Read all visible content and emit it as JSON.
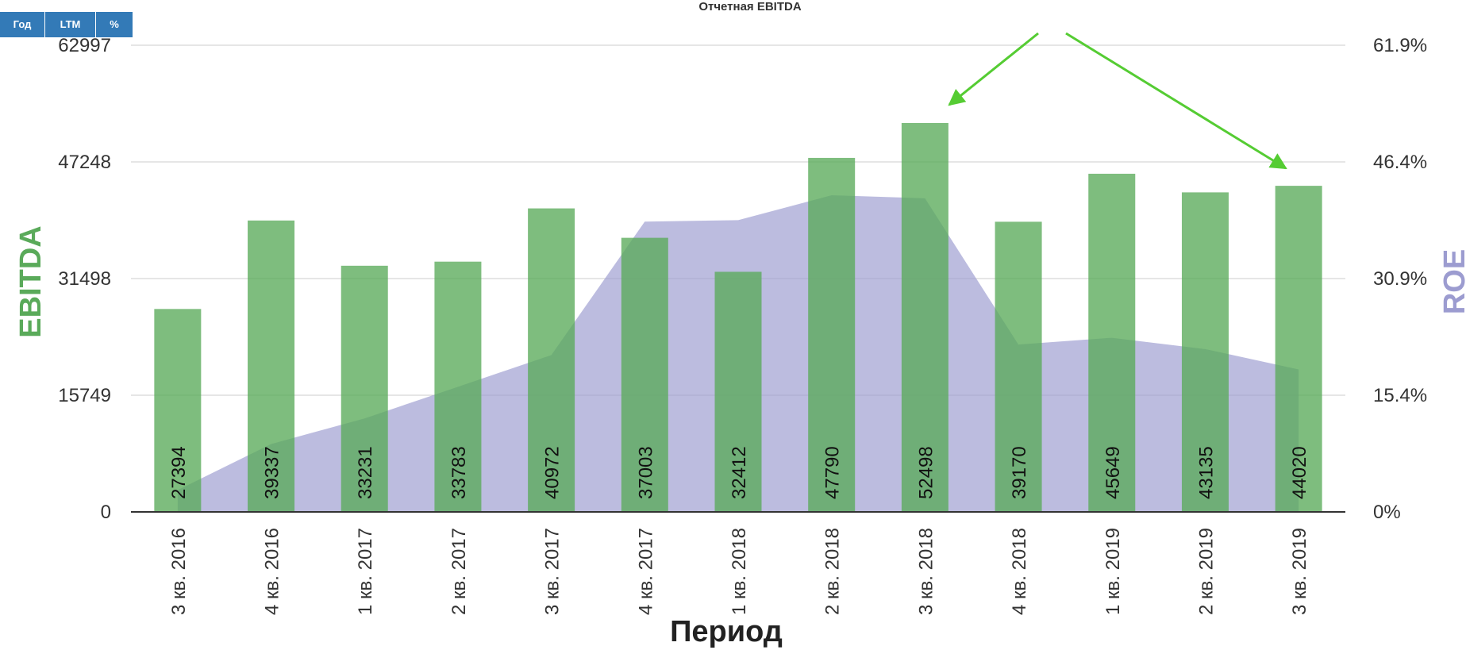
{
  "toolbar": {
    "buttons": [
      "Год",
      "LTM",
      "%"
    ]
  },
  "colors": {
    "bar": "#5aaa5a",
    "area": "#9c9cd0",
    "arrow": "#55cc33",
    "grid": "#cccccc"
  },
  "chart_data": {
    "type": "bar",
    "title": "Отчетная EBITDA",
    "xlabel": "Период",
    "ylabel": "EBITDA",
    "y2label": "ROE",
    "categories": [
      "3 кв. 2016",
      "4 кв. 2016",
      "1 кв. 2017",
      "2 кв. 2017",
      "3 кв. 2017",
      "4 кв. 2017",
      "1 кв. 2018",
      "2 кв. 2018",
      "3 кв. 2018",
      "4 кв. 2018",
      "1 кв. 2019",
      "2 кв. 2019",
      "3 кв. 2019"
    ],
    "series": [
      {
        "name": "EBITDA",
        "type": "bar",
        "axis": "left",
        "values": [
          27394,
          39337,
          33231,
          33783,
          40972,
          37003,
          32412,
          47790,
          52498,
          39170,
          45649,
          43135,
          44020
        ]
      },
      {
        "name": "ROE",
        "type": "area",
        "axis": "right",
        "values": [
          2.9,
          9.0,
          12.4,
          16.6,
          20.8,
          38.5,
          38.7,
          42.0,
          41.6,
          22.2,
          23.1,
          21.6,
          18.9
        ]
      }
    ],
    "yticks": [
      "0",
      "15749",
      "31498",
      "47248",
      "62997"
    ],
    "y2ticks": [
      "0%",
      "15.4%",
      "30.9%",
      "46.4%",
      "61.9%"
    ],
    "ylim": [
      0,
      62997
    ],
    "y2lim": [
      0,
      61.9
    ],
    "grid": true
  }
}
